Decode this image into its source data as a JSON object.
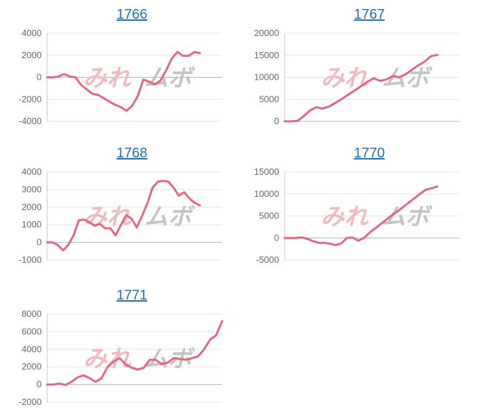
{
  "colors": {
    "line": "#e8647a",
    "grid": "#e6e6e6",
    "axis": "#c8c8c8",
    "title": "#1f6fb5",
    "tick": "#666666",
    "wm_left": "#f0b8bf",
    "wm_right": "#c4c4c4"
  },
  "watermark": {
    "left": "みれ",
    "right": "ムボ"
  },
  "chart_data": [
    {
      "type": "line",
      "title": "1766",
      "ylim": [
        -4000,
        4000
      ],
      "yticks": [
        4000,
        2000,
        0,
        -2000,
        -4000
      ],
      "values": [
        0,
        0,
        80,
        300,
        80,
        0,
        -700,
        -1100,
        -1500,
        -1600,
        -1900,
        -2200,
        -2500,
        -2700,
        -3050,
        -2600,
        -1700,
        -200,
        -400,
        -650,
        -300,
        600,
        1700,
        2300,
        1950,
        1950,
        2300,
        2200
      ]
    },
    {
      "type": "line",
      "title": "1767",
      "ylim": [
        0,
        20000
      ],
      "yticks": [
        20000,
        15000,
        10000,
        5000,
        0
      ],
      "values": [
        0,
        0,
        100,
        1200,
        2500,
        3200,
        2900,
        3400,
        4200,
        5100,
        6100,
        7000,
        8000,
        9000,
        9800,
        9200,
        9500,
        10300,
        10000,
        10700,
        11700,
        12700,
        13600,
        14800,
        15100
      ]
    },
    {
      "type": "line",
      "title": "1768",
      "ylim": [
        -1000,
        4000
      ],
      "yticks": [
        4000,
        3000,
        2000,
        1000,
        0,
        -1000
      ],
      "values": [
        0,
        0,
        -150,
        -450,
        -150,
        400,
        1250,
        1300,
        1150,
        950,
        1050,
        800,
        800,
        400,
        1000,
        1550,
        1350,
        850,
        1500,
        2200,
        3100,
        3450,
        3500,
        3450,
        3100,
        2650,
        2850,
        2500,
        2250,
        2100
      ]
    },
    {
      "type": "line",
      "title": "1770",
      "ylim": [
        -5000,
        15000
      ],
      "yticks": [
        15000,
        10000,
        5000,
        0,
        -5000
      ],
      "values": [
        0,
        0,
        0,
        150,
        -200,
        -700,
        -1100,
        -1100,
        -1300,
        -1600,
        -1200,
        0,
        100,
        -600,
        0,
        1200,
        2200,
        3200,
        4200,
        5200,
        6100,
        7100,
        8100,
        9100,
        10100,
        11000,
        11300,
        11700
      ]
    },
    {
      "type": "line",
      "title": "1771",
      "ylim": [
        -2000,
        8000
      ],
      "yticks": [
        8000,
        6000,
        4000,
        2000,
        0,
        -2000
      ],
      "values": [
        0,
        0,
        100,
        -50,
        300,
        800,
        1050,
        750,
        300,
        700,
        2000,
        2600,
        3000,
        2300,
        1900,
        1700,
        1900,
        2800,
        2800,
        2300,
        2500,
        3000,
        2900,
        2800,
        3000,
        3200,
        4000,
        5100,
        5600,
        7200
      ]
    }
  ]
}
